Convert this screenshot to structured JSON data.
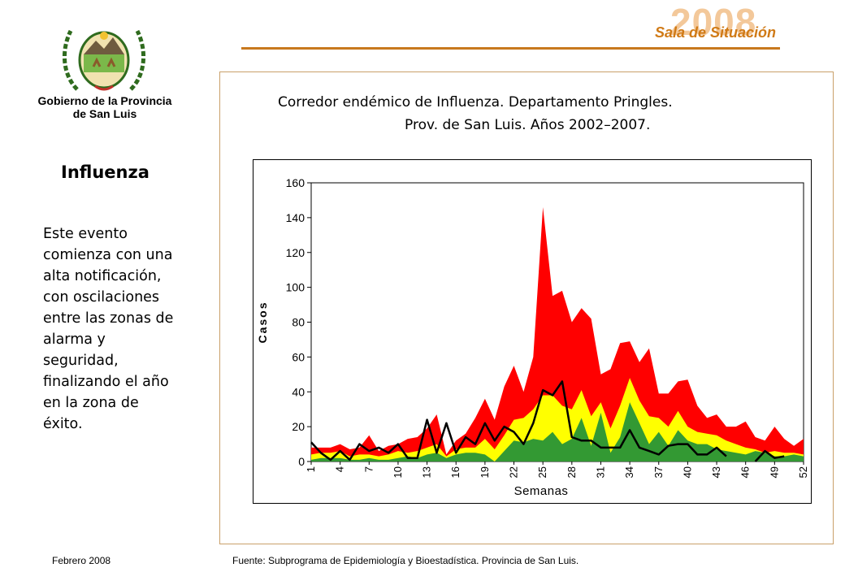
{
  "header": {
    "year": "2008",
    "title": "Sala de Situación"
  },
  "government": {
    "line1": "Gobierno de la Provincia",
    "line2": "de San Luis"
  },
  "section_title": "Influenza",
  "description": "Este evento comienza con una alta notificación, con oscilaciones entre las zonas de alarma y seguridad, finalizando el año en la zona de éxito.",
  "chart_title": {
    "line1": "Corredor endémico de Influenza. Departamento Pringles.",
    "line2": "Prov. de San Luis. Años 2002–2007."
  },
  "footer": {
    "date": "Febrero 2008",
    "source": "Fuente: Subprograma de Epidemiología y Bioestadística. Provincia de San Luis."
  },
  "colors": {
    "alarma": "#ff0000",
    "seguridad": "#ffff00",
    "exito": "#339933",
    "actual": "#000000",
    "accent": "#d07a16"
  },
  "chart_data": {
    "type": "area",
    "xlabel": "Semanas",
    "ylabel": "Casos",
    "ylim": [
      0,
      160
    ],
    "yticks": [
      0,
      20,
      40,
      60,
      80,
      100,
      120,
      140,
      160
    ],
    "xticks": [
      1,
      4,
      7,
      10,
      13,
      16,
      19,
      22,
      25,
      28,
      31,
      34,
      37,
      40,
      43,
      46,
      49,
      52
    ],
    "x": [
      1,
      2,
      3,
      4,
      5,
      6,
      7,
      8,
      9,
      10,
      11,
      12,
      13,
      14,
      15,
      16,
      17,
      18,
      19,
      20,
      21,
      22,
      23,
      24,
      25,
      26,
      27,
      28,
      29,
      30,
      31,
      32,
      33,
      34,
      35,
      36,
      37,
      38,
      39,
      40,
      41,
      42,
      43,
      44,
      45,
      46,
      47,
      48,
      49,
      50,
      51,
      52
    ],
    "series": [
      {
        "values": [
          8,
          8,
          8,
          10,
          7,
          8,
          15,
          6,
          9,
          10,
          13,
          14,
          19,
          27,
          4,
          12,
          16,
          25,
          36,
          24,
          43,
          55,
          40,
          60,
          146,
          95,
          98,
          80,
          88,
          82,
          50,
          53,
          68,
          69,
          57,
          65,
          39,
          39,
          46,
          47,
          32,
          25,
          27,
          20,
          20,
          23,
          14,
          12,
          20,
          13,
          9,
          13
        ]
      },
      {
        "values": [
          4,
          5,
          5,
          6,
          3,
          4,
          4,
          3,
          4,
          6,
          5,
          6,
          8,
          10,
          3,
          7,
          8,
          8,
          13,
          7,
          15,
          24,
          25,
          30,
          38,
          38,
          32,
          30,
          41,
          26,
          34,
          19,
          32,
          48,
          35,
          26,
          25,
          20,
          29,
          20,
          17,
          16,
          15,
          12,
          10,
          8,
          7,
          5,
          6,
          5,
          5,
          4
        ]
      },
      {
        "values": [
          1,
          2,
          2,
          2,
          1,
          1,
          2,
          1,
          1,
          2,
          3,
          2,
          4,
          5,
          2,
          4,
          5,
          5,
          4,
          0,
          6,
          12,
          11,
          13,
          12,
          17,
          10,
          13,
          25,
          9,
          28,
          5,
          14,
          34,
          22,
          10,
          17,
          9,
          18,
          12,
          10,
          10,
          7,
          6,
          5,
          4,
          6,
          5,
          3,
          3,
          4,
          3
        ]
      },
      {
        "values": [
          11,
          5,
          1,
          6,
          1,
          10,
          6,
          8,
          5,
          10,
          2,
          2,
          24,
          5,
          22,
          5,
          14,
          10,
          22,
          12,
          20,
          17,
          10,
          22,
          41,
          38,
          46,
          14,
          12,
          12,
          8,
          8,
          8,
          18,
          8,
          6,
          4,
          9,
          10,
          10,
          4,
          4,
          8,
          3,
          null,
          null,
          0,
          6,
          2,
          3,
          null,
          null
        ]
      }
    ]
  }
}
